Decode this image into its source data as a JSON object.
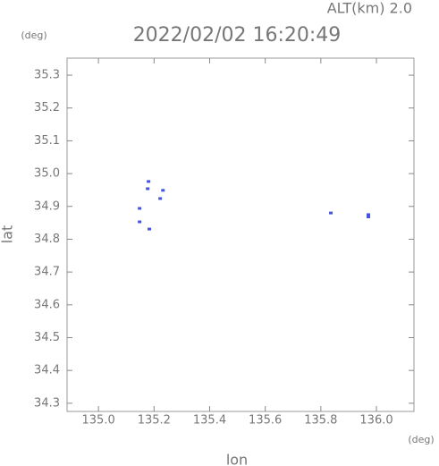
{
  "chart_data": {
    "type": "scatter",
    "title": "2022/02/02 16:20:49",
    "subtitle": "ALT(km)  2.0",
    "x_label": "lon",
    "y_label": "lat",
    "x_unit": "(deg)",
    "y_unit": "(deg)",
    "color": "#4455dd",
    "x": [
      135.18,
      135.177,
      135.232,
      135.222,
      135.148,
      135.148,
      135.183,
      135.836,
      135.971,
      135.971
    ],
    "y": [
      34.976,
      34.954,
      34.949,
      34.924,
      34.894,
      34.853,
      34.831,
      34.88,
      34.875,
      34.868
    ],
    "xlim": [
      134.887,
      136.135
    ],
    "ylim": [
      34.275,
      35.352
    ],
    "xticks": [
      {
        "value": 135,
        "label": "135.0"
      },
      135.2,
      135.4,
      135.6,
      135.8,
      {
        "value": 136,
        "label": "136.0"
      }
    ],
    "yticks": [
      34.3,
      34.4,
      34.5,
      34.6,
      34.7,
      34.8,
      34.9,
      {
        "value": 35,
        "label": "35.0"
      },
      35.1,
      35.2,
      35.3
    ]
  }
}
